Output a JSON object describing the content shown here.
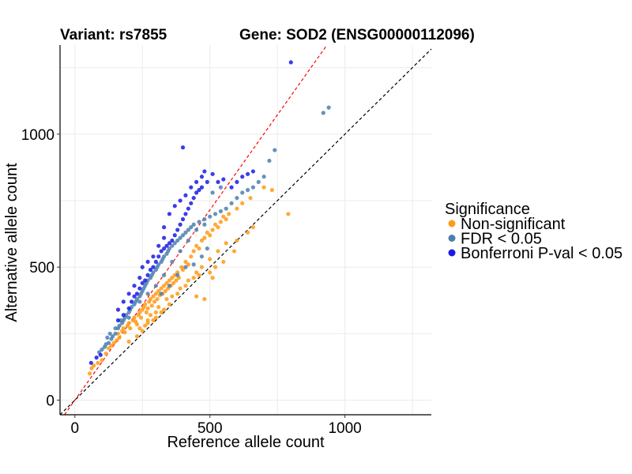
{
  "chart_data": {
    "type": "scatter",
    "title_left": "Variant: rs7855",
    "title_right": "Gene: SOD2 (ENSG00000112096)",
    "xlabel": "Reference allele count",
    "ylabel": "Alternative allele count",
    "xlim": [
      -55,
      1320
    ],
    "ylim": [
      -55,
      1335
    ],
    "x_ticks": [
      0,
      500,
      1000
    ],
    "y_ticks": [
      0,
      500,
      1000
    ],
    "grid": true,
    "reference_lines": [
      {
        "name": "identity",
        "slope": 1.0,
        "intercept": 0,
        "color": "#000000",
        "dash": "dashed"
      },
      {
        "name": "fitted",
        "slope": 1.43,
        "intercept": 0,
        "color": "#ff0000",
        "dash": "dashed"
      }
    ],
    "legend": {
      "title": "Significance",
      "position": "right",
      "entries": [
        {
          "label": "Non-significant",
          "color": "#ff9a14"
        },
        {
          "label": "FDR < 0.05",
          "color": "#4b7fb0"
        },
        {
          "label": "Bonferroni P-val < 0.05",
          "color": "#1a1ae6"
        }
      ]
    },
    "series": [
      {
        "name": "Non-significant",
        "color": "#ff9a14",
        "points": [
          [
            55,
            100
          ],
          [
            62,
            120
          ],
          [
            70,
            130
          ],
          [
            85,
            140
          ],
          [
            100,
            150
          ],
          [
            115,
            175
          ],
          [
            125,
            195
          ],
          [
            135,
            205
          ],
          [
            145,
            215
          ],
          [
            155,
            225
          ],
          [
            160,
            250
          ],
          [
            165,
            235
          ],
          [
            175,
            260
          ],
          [
            180,
            270
          ],
          [
            185,
            255
          ],
          [
            195,
            280
          ],
          [
            200,
            290
          ],
          [
            205,
            270
          ],
          [
            215,
            300
          ],
          [
            220,
            310
          ],
          [
            225,
            295
          ],
          [
            230,
            285
          ],
          [
            235,
            320
          ],
          [
            240,
            330
          ],
          [
            245,
            310
          ],
          [
            250,
            340
          ],
          [
            255,
            350
          ],
          [
            260,
            360
          ],
          [
            265,
            330
          ],
          [
            270,
            345
          ],
          [
            275,
            370
          ],
          [
            280,
            380
          ],
          [
            285,
            355
          ],
          [
            290,
            390
          ],
          [
            295,
            370
          ],
          [
            300,
            400
          ],
          [
            305,
            380
          ],
          [
            310,
            410
          ],
          [
            315,
            395
          ],
          [
            320,
            420
          ],
          [
            325,
            400
          ],
          [
            330,
            430
          ],
          [
            335,
            410
          ],
          [
            340,
            440
          ],
          [
            345,
            420
          ],
          [
            350,
            450
          ],
          [
            355,
            430
          ],
          [
            360,
            460
          ],
          [
            365,
            440
          ],
          [
            370,
            470
          ],
          [
            375,
            450
          ],
          [
            380,
            480
          ],
          [
            385,
            460
          ],
          [
            395,
            500
          ],
          [
            400,
            490
          ],
          [
            410,
            520
          ],
          [
            420,
            510
          ],
          [
            430,
            540
          ],
          [
            440,
            560
          ],
          [
            450,
            580
          ],
          [
            460,
            570
          ],
          [
            470,
            600
          ],
          [
            480,
            610
          ],
          [
            490,
            630
          ],
          [
            500,
            620
          ],
          [
            510,
            640
          ],
          [
            520,
            660
          ],
          [
            530,
            650
          ],
          [
            540,
            670
          ],
          [
            550,
            690
          ],
          [
            560,
            680
          ],
          [
            570,
            700
          ],
          [
            600,
            720
          ],
          [
            620,
            740
          ],
          [
            650,
            760
          ],
          [
            700,
            800
          ],
          [
            730,
            790
          ],
          [
            790,
            700
          ],
          [
            250,
            260
          ],
          [
            270,
            290
          ],
          [
            300,
            310
          ],
          [
            330,
            340
          ],
          [
            200,
            220
          ],
          [
            230,
            240
          ],
          [
            260,
            280
          ],
          [
            290,
            300
          ],
          [
            320,
            330
          ],
          [
            350,
            360
          ],
          [
            280,
            320
          ],
          [
            310,
            350
          ],
          [
            340,
            380
          ],
          [
            270,
            300
          ],
          [
            300,
            330
          ],
          [
            240,
            270
          ],
          [
            360,
            390
          ],
          [
            390,
            420
          ],
          [
            420,
            450
          ],
          [
            450,
            480
          ],
          [
            470,
            500
          ],
          [
            500,
            530
          ],
          [
            530,
            560
          ],
          [
            560,
            590
          ],
          [
            380,
            400
          ],
          [
            410,
            430
          ],
          [
            440,
            460
          ],
          [
            460,
            470
          ],
          [
            500,
            480
          ],
          [
            520,
            500
          ],
          [
            550,
            520
          ],
          [
            480,
            380
          ],
          [
            450,
            390
          ],
          [
            510,
            460
          ],
          [
            590,
            560
          ],
          [
            600,
            600
          ],
          [
            640,
            630
          ],
          [
            660,
            650
          ]
        ]
      },
      {
        "name": "FDR < 0.05",
        "color": "#4b7fb0",
        "points": [
          [
            90,
            180
          ],
          [
            100,
            190
          ],
          [
            110,
            200
          ],
          [
            115,
            210
          ],
          [
            125,
            215
          ],
          [
            135,
            230
          ],
          [
            140,
            240
          ],
          [
            150,
            250
          ],
          [
            160,
            270
          ],
          [
            165,
            280
          ],
          [
            175,
            290
          ],
          [
            180,
            300
          ],
          [
            185,
            310
          ],
          [
            190,
            320
          ],
          [
            200,
            330
          ],
          [
            205,
            340
          ],
          [
            210,
            350
          ],
          [
            220,
            360
          ],
          [
            225,
            370
          ],
          [
            230,
            380
          ],
          [
            240,
            390
          ],
          [
            245,
            400
          ],
          [
            250,
            410
          ],
          [
            255,
            420
          ],
          [
            260,
            430
          ],
          [
            265,
            440
          ],
          [
            270,
            450
          ],
          [
            280,
            460
          ],
          [
            285,
            470
          ],
          [
            290,
            480
          ],
          [
            300,
            490
          ],
          [
            305,
            500
          ],
          [
            310,
            510
          ],
          [
            320,
            520
          ],
          [
            325,
            530
          ],
          [
            330,
            540
          ],
          [
            340,
            550
          ],
          [
            345,
            560
          ],
          [
            350,
            570
          ],
          [
            360,
            580
          ],
          [
            370,
            590
          ],
          [
            380,
            600
          ],
          [
            390,
            610
          ],
          [
            400,
            620
          ],
          [
            410,
            630
          ],
          [
            420,
            640
          ],
          [
            430,
            650
          ],
          [
            440,
            660
          ],
          [
            460,
            670
          ],
          [
            480,
            680
          ],
          [
            500,
            690
          ],
          [
            520,
            700
          ],
          [
            540,
            710
          ],
          [
            560,
            720
          ],
          [
            580,
            740
          ],
          [
            600,
            760
          ],
          [
            620,
            780
          ],
          [
            640,
            790
          ],
          [
            660,
            800
          ],
          [
            680,
            820
          ],
          [
            700,
            840
          ],
          [
            720,
            900
          ],
          [
            740,
            940
          ],
          [
            920,
            1080
          ],
          [
            940,
            1100
          ],
          [
            510,
            780
          ],
          [
            540,
            800
          ],
          [
            320,
            400
          ],
          [
            350,
            430
          ],
          [
            380,
            470
          ],
          [
            410,
            500
          ],
          [
            300,
            430
          ],
          [
            330,
            470
          ],
          [
            270,
            400
          ],
          [
            240,
            370
          ],
          [
            200,
            310
          ],
          [
            170,
            300
          ],
          [
            150,
            270
          ],
          [
            130,
            250
          ],
          [
            120,
            235
          ],
          [
            360,
            520
          ],
          [
            390,
            560
          ],
          [
            420,
            600
          ],
          [
            450,
            640
          ],
          [
            480,
            660
          ],
          [
            440,
            510
          ],
          [
            470,
            540
          ],
          [
            490,
            570
          ]
        ]
      },
      {
        "name": "Bonferroni P-val < 0.05",
        "color": "#1a1ae6",
        "points": [
          [
            60,
            140
          ],
          [
            80,
            160
          ],
          [
            95,
            170
          ],
          [
            160,
            300
          ],
          [
            180,
            320
          ],
          [
            200,
            345
          ],
          [
            210,
            370
          ],
          [
            220,
            390
          ],
          [
            230,
            400
          ],
          [
            240,
            420
          ],
          [
            250,
            440
          ],
          [
            260,
            450
          ],
          [
            270,
            470
          ],
          [
            280,
            490
          ],
          [
            290,
            500
          ],
          [
            300,
            520
          ],
          [
            310,
            540
          ],
          [
            320,
            560
          ],
          [
            330,
            570
          ],
          [
            340,
            580
          ],
          [
            350,
            590
          ],
          [
            360,
            600
          ],
          [
            370,
            620
          ],
          [
            380,
            640
          ],
          [
            390,
            660
          ],
          [
            400,
            680
          ],
          [
            410,
            700
          ],
          [
            420,
            720
          ],
          [
            430,
            740
          ],
          [
            440,
            760
          ],
          [
            450,
            780
          ],
          [
            460,
            790
          ],
          [
            470,
            800
          ],
          [
            490,
            820
          ],
          [
            510,
            850
          ],
          [
            530,
            820
          ],
          [
            550,
            830
          ],
          [
            580,
            800
          ],
          [
            600,
            820
          ],
          [
            620,
            840
          ],
          [
            640,
            850
          ],
          [
            660,
            860
          ],
          [
            400,
            950
          ],
          [
            800,
            1270
          ],
          [
            330,
            650
          ],
          [
            350,
            700
          ],
          [
            370,
            730
          ],
          [
            390,
            750
          ],
          [
            410,
            770
          ],
          [
            430,
            800
          ],
          [
            450,
            820
          ],
          [
            470,
            840
          ],
          [
            480,
            860
          ],
          [
            250,
            500
          ],
          [
            270,
            520
          ],
          [
            290,
            540
          ],
          [
            310,
            580
          ],
          [
            330,
            610
          ],
          [
            200,
            400
          ],
          [
            220,
            430
          ],
          [
            240,
            460
          ],
          [
            180,
            370
          ],
          [
            160,
            340
          ]
        ]
      }
    ]
  }
}
